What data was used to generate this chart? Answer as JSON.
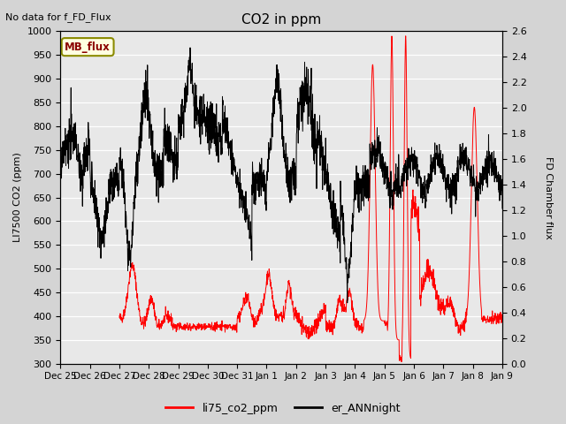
{
  "title": "CO2 in ppm",
  "ylabel_left": "LI7500 CO2 (ppm)",
  "ylabel_right": "FD Chamber flux",
  "ylim_left": [
    300,
    1000
  ],
  "ylim_right": [
    0.0,
    2.6
  ],
  "no_data_text": "No data for f_FD_Flux",
  "mb_flux_label": "MB_flux",
  "legend_entries": [
    "li75_co2_ppm",
    "er_ANNnight"
  ],
  "bg_color": "#e0e0e0",
  "xtick_labels": [
    "Dec 25",
    "Dec 26",
    "Dec 27",
    "Dec 28",
    "Dec 29",
    "Dec 30",
    "Dec 31",
    "Jan 1",
    "Jan 2",
    "Jan 3",
    "Jan 4",
    "Jan 5",
    "Jan 6",
    "Jan 7",
    "Jan 8",
    "Jan 9"
  ],
  "xtick_positions": [
    0,
    1,
    2,
    3,
    4,
    5,
    6,
    7,
    8,
    9,
    10,
    11,
    12,
    13,
    14,
    15
  ],
  "yticks_left": [
    300,
    350,
    400,
    450,
    500,
    550,
    600,
    650,
    700,
    750,
    800,
    850,
    900,
    950,
    1000
  ],
  "yticks_right": [
    0.0,
    0.2,
    0.4,
    0.6,
    0.8,
    1.0,
    1.2,
    1.4,
    1.6,
    1.8,
    2.0,
    2.2,
    2.4,
    2.6
  ]
}
